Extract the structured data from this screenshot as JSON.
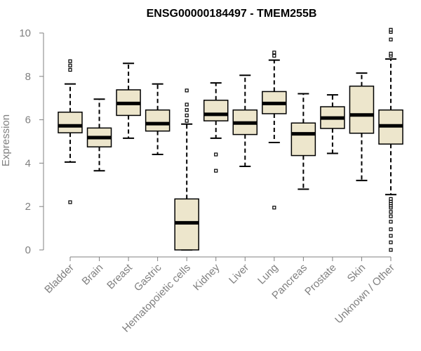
{
  "chart_data": {
    "type": "boxplot",
    "title": "ENSG00000184497 - TMEM255B",
    "ylabel": "Expression",
    "xlabel": "",
    "ylim": [
      0,
      10
    ],
    "yticks": [
      0,
      2,
      4,
      6,
      8,
      10
    ],
    "ytick_labels": [
      "0",
      "2",
      "4",
      "6",
      "8",
      "10"
    ],
    "grid": false,
    "colors": {
      "box_fill": "#ede6cc",
      "box_stroke": "#000000",
      "median": "#000000",
      "axis": "#808080"
    },
    "categories": [
      "Bladder",
      "Brain",
      "Breast",
      "Gastric",
      "Hematopoietic cells",
      "Kidney",
      "Liver",
      "Lung",
      "Pancreas",
      "Prostate",
      "Skin",
      "Unknown / Other"
    ],
    "boxes": [
      {
        "label": "Bladder",
        "whisker_low": 4.05,
        "q1": 5.4,
        "median": 5.72,
        "q3": 6.35,
        "whisker_high": 7.65,
        "outliers": [
          2.2,
          8.3,
          8.5,
          8.7
        ]
      },
      {
        "label": "Brain",
        "whisker_low": 3.65,
        "q1": 4.75,
        "median": 5.18,
        "q3": 5.62,
        "whisker_high": 6.95,
        "outliers": []
      },
      {
        "label": "Breast",
        "whisker_low": 5.15,
        "q1": 6.2,
        "median": 6.75,
        "q3": 7.38,
        "whisker_high": 8.6,
        "outliers": []
      },
      {
        "label": "Gastric",
        "whisker_low": 4.4,
        "q1": 5.48,
        "median": 5.82,
        "q3": 6.45,
        "whisker_high": 7.65,
        "outliers": []
      },
      {
        "label": "Hematopoietic cells",
        "whisker_low": 0.0,
        "q1": 0.0,
        "median": 1.25,
        "q3": 2.35,
        "whisker_high": 5.8,
        "outliers": [
          5.95,
          6.2,
          6.45,
          6.7,
          7.35
        ]
      },
      {
        "label": "Kidney",
        "whisker_low": 5.15,
        "q1": 5.95,
        "median": 6.25,
        "q3": 6.9,
        "whisker_high": 7.7,
        "outliers": [
          3.65,
          4.4
        ]
      },
      {
        "label": "Liver",
        "whisker_low": 3.85,
        "q1": 5.32,
        "median": 5.85,
        "q3": 6.45,
        "whisker_high": 8.05,
        "outliers": []
      },
      {
        "label": "Lung",
        "whisker_low": 4.95,
        "q1": 6.28,
        "median": 6.75,
        "q3": 7.3,
        "whisker_high": 8.75,
        "outliers": [
          1.95,
          8.95,
          9.1
        ]
      },
      {
        "label": "Pancreas",
        "whisker_low": 2.8,
        "q1": 4.35,
        "median": 5.35,
        "q3": 5.85,
        "whisker_high": 7.2,
        "outliers": []
      },
      {
        "label": "Prostate",
        "whisker_low": 4.45,
        "q1": 5.6,
        "median": 6.08,
        "q3": 6.6,
        "whisker_high": 7.15,
        "outliers": []
      },
      {
        "label": "Skin",
        "whisker_low": 3.2,
        "q1": 5.38,
        "median": 6.22,
        "q3": 7.55,
        "whisker_high": 8.15,
        "outliers": []
      },
      {
        "label": "Unknown / Other",
        "whisker_low": 2.55,
        "q1": 4.88,
        "median": 5.72,
        "q3": 6.45,
        "whisker_high": 8.8,
        "outliers": [
          0.0,
          0.35,
          0.65,
          0.95,
          1.3,
          1.55,
          1.75,
          1.95,
          2.05,
          2.15,
          2.25,
          2.35,
          8.95,
          9.05,
          9.7,
          10.05,
          10.15
        ]
      }
    ]
  }
}
